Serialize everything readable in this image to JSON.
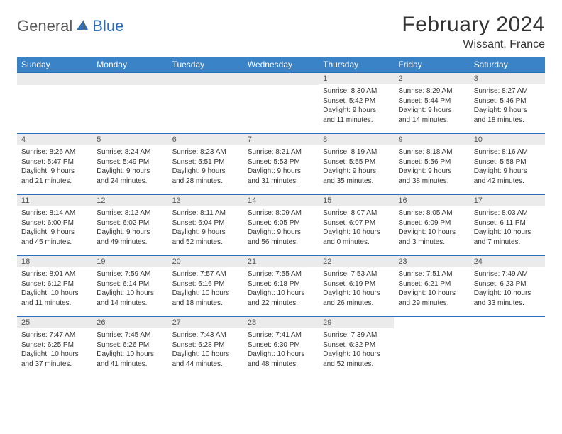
{
  "logo": {
    "part1": "General",
    "part2": "Blue"
  },
  "title": "February 2024",
  "location": "Wissant, France",
  "colors": {
    "header_bg": "#3b83c7",
    "border": "#2d6fb8",
    "daynum_bg": "#ebebeb",
    "text": "#333333",
    "logo_gray": "#5a5a5a",
    "logo_blue": "#2d6fb8"
  },
  "weekdays": [
    "Sunday",
    "Monday",
    "Tuesday",
    "Wednesday",
    "Thursday",
    "Friday",
    "Saturday"
  ],
  "weeks": [
    [
      null,
      null,
      null,
      null,
      {
        "n": "1",
        "sr": "Sunrise: 8:30 AM",
        "ss": "Sunset: 5:42 PM",
        "dl1": "Daylight: 9 hours",
        "dl2": "and 11 minutes."
      },
      {
        "n": "2",
        "sr": "Sunrise: 8:29 AM",
        "ss": "Sunset: 5:44 PM",
        "dl1": "Daylight: 9 hours",
        "dl2": "and 14 minutes."
      },
      {
        "n": "3",
        "sr": "Sunrise: 8:27 AM",
        "ss": "Sunset: 5:46 PM",
        "dl1": "Daylight: 9 hours",
        "dl2": "and 18 minutes."
      }
    ],
    [
      {
        "n": "4",
        "sr": "Sunrise: 8:26 AM",
        "ss": "Sunset: 5:47 PM",
        "dl1": "Daylight: 9 hours",
        "dl2": "and 21 minutes."
      },
      {
        "n": "5",
        "sr": "Sunrise: 8:24 AM",
        "ss": "Sunset: 5:49 PM",
        "dl1": "Daylight: 9 hours",
        "dl2": "and 24 minutes."
      },
      {
        "n": "6",
        "sr": "Sunrise: 8:23 AM",
        "ss": "Sunset: 5:51 PM",
        "dl1": "Daylight: 9 hours",
        "dl2": "and 28 minutes."
      },
      {
        "n": "7",
        "sr": "Sunrise: 8:21 AM",
        "ss": "Sunset: 5:53 PM",
        "dl1": "Daylight: 9 hours",
        "dl2": "and 31 minutes."
      },
      {
        "n": "8",
        "sr": "Sunrise: 8:19 AM",
        "ss": "Sunset: 5:55 PM",
        "dl1": "Daylight: 9 hours",
        "dl2": "and 35 minutes."
      },
      {
        "n": "9",
        "sr": "Sunrise: 8:18 AM",
        "ss": "Sunset: 5:56 PM",
        "dl1": "Daylight: 9 hours",
        "dl2": "and 38 minutes."
      },
      {
        "n": "10",
        "sr": "Sunrise: 8:16 AM",
        "ss": "Sunset: 5:58 PM",
        "dl1": "Daylight: 9 hours",
        "dl2": "and 42 minutes."
      }
    ],
    [
      {
        "n": "11",
        "sr": "Sunrise: 8:14 AM",
        "ss": "Sunset: 6:00 PM",
        "dl1": "Daylight: 9 hours",
        "dl2": "and 45 minutes."
      },
      {
        "n": "12",
        "sr": "Sunrise: 8:12 AM",
        "ss": "Sunset: 6:02 PM",
        "dl1": "Daylight: 9 hours",
        "dl2": "and 49 minutes."
      },
      {
        "n": "13",
        "sr": "Sunrise: 8:11 AM",
        "ss": "Sunset: 6:04 PM",
        "dl1": "Daylight: 9 hours",
        "dl2": "and 52 minutes."
      },
      {
        "n": "14",
        "sr": "Sunrise: 8:09 AM",
        "ss": "Sunset: 6:05 PM",
        "dl1": "Daylight: 9 hours",
        "dl2": "and 56 minutes."
      },
      {
        "n": "15",
        "sr": "Sunrise: 8:07 AM",
        "ss": "Sunset: 6:07 PM",
        "dl1": "Daylight: 10 hours",
        "dl2": "and 0 minutes."
      },
      {
        "n": "16",
        "sr": "Sunrise: 8:05 AM",
        "ss": "Sunset: 6:09 PM",
        "dl1": "Daylight: 10 hours",
        "dl2": "and 3 minutes."
      },
      {
        "n": "17",
        "sr": "Sunrise: 8:03 AM",
        "ss": "Sunset: 6:11 PM",
        "dl1": "Daylight: 10 hours",
        "dl2": "and 7 minutes."
      }
    ],
    [
      {
        "n": "18",
        "sr": "Sunrise: 8:01 AM",
        "ss": "Sunset: 6:12 PM",
        "dl1": "Daylight: 10 hours",
        "dl2": "and 11 minutes."
      },
      {
        "n": "19",
        "sr": "Sunrise: 7:59 AM",
        "ss": "Sunset: 6:14 PM",
        "dl1": "Daylight: 10 hours",
        "dl2": "and 14 minutes."
      },
      {
        "n": "20",
        "sr": "Sunrise: 7:57 AM",
        "ss": "Sunset: 6:16 PM",
        "dl1": "Daylight: 10 hours",
        "dl2": "and 18 minutes."
      },
      {
        "n": "21",
        "sr": "Sunrise: 7:55 AM",
        "ss": "Sunset: 6:18 PM",
        "dl1": "Daylight: 10 hours",
        "dl2": "and 22 minutes."
      },
      {
        "n": "22",
        "sr": "Sunrise: 7:53 AM",
        "ss": "Sunset: 6:19 PM",
        "dl1": "Daylight: 10 hours",
        "dl2": "and 26 minutes."
      },
      {
        "n": "23",
        "sr": "Sunrise: 7:51 AM",
        "ss": "Sunset: 6:21 PM",
        "dl1": "Daylight: 10 hours",
        "dl2": "and 29 minutes."
      },
      {
        "n": "24",
        "sr": "Sunrise: 7:49 AM",
        "ss": "Sunset: 6:23 PM",
        "dl1": "Daylight: 10 hours",
        "dl2": "and 33 minutes."
      }
    ],
    [
      {
        "n": "25",
        "sr": "Sunrise: 7:47 AM",
        "ss": "Sunset: 6:25 PM",
        "dl1": "Daylight: 10 hours",
        "dl2": "and 37 minutes."
      },
      {
        "n": "26",
        "sr": "Sunrise: 7:45 AM",
        "ss": "Sunset: 6:26 PM",
        "dl1": "Daylight: 10 hours",
        "dl2": "and 41 minutes."
      },
      {
        "n": "27",
        "sr": "Sunrise: 7:43 AM",
        "ss": "Sunset: 6:28 PM",
        "dl1": "Daylight: 10 hours",
        "dl2": "and 44 minutes."
      },
      {
        "n": "28",
        "sr": "Sunrise: 7:41 AM",
        "ss": "Sunset: 6:30 PM",
        "dl1": "Daylight: 10 hours",
        "dl2": "and 48 minutes."
      },
      {
        "n": "29",
        "sr": "Sunrise: 7:39 AM",
        "ss": "Sunset: 6:32 PM",
        "dl1": "Daylight: 10 hours",
        "dl2": "and 52 minutes."
      },
      null,
      null
    ]
  ]
}
